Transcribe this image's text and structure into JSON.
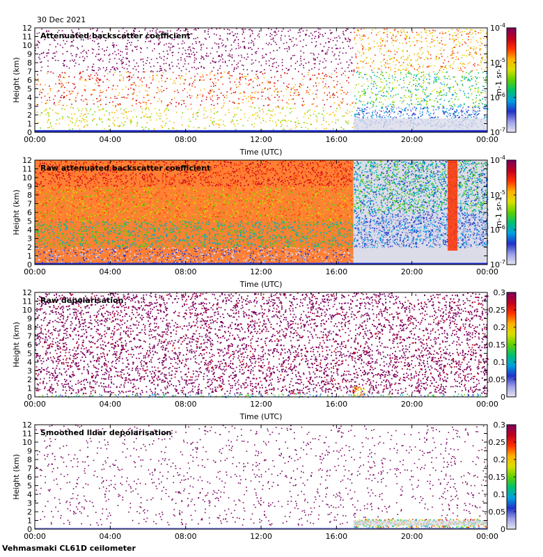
{
  "date": "30 Dec 2021",
  "footer": "Vehmasmaki CL61D ceilometer",
  "chart_data": [
    {
      "type": "heatmap",
      "title": "Attenuated backscatter coefficient",
      "xlabel": "Time (UTC)",
      "ylabel": "Height (km)",
      "xticks": [
        "00:00",
        "04:00",
        "08:00",
        "12:00",
        "16:00",
        "20:00",
        "00:00"
      ],
      "yticks": [
        "0",
        "1",
        "2",
        "3",
        "4",
        "5",
        "6",
        "7",
        "8",
        "9",
        "10",
        "11",
        "12"
      ],
      "ylim": [
        0,
        12
      ],
      "colorbar": {
        "scale": "log",
        "ticks": [
          "10-4",
          "10-5",
          "10-6",
          "10-7"
        ],
        "tick_base": "10",
        "tick_exponents": [
          "-4",
          "-5",
          "-6",
          "-7"
        ],
        "unit": "m-1 sr-1"
      }
    },
    {
      "type": "heatmap",
      "title": "Raw attenuated backscatter coefficient",
      "xlabel": "Time (UTC)",
      "ylabel": "Height (km)",
      "xticks": [
        "00:00",
        "04:00",
        "08:00",
        "12:00",
        "16:00",
        "20:00",
        "00:00"
      ],
      "yticks": [
        "0",
        "1",
        "2",
        "3",
        "4",
        "5",
        "6",
        "7",
        "8",
        "9",
        "10",
        "11",
        "12"
      ],
      "ylim": [
        0,
        12
      ],
      "colorbar": {
        "scale": "log",
        "ticks": [
          "10-4",
          "10-5",
          "10-6",
          "10-7"
        ],
        "tick_base": "10",
        "tick_exponents": [
          "-4",
          "-5",
          "-6",
          "-7"
        ],
        "unit": "m-1 sr-1"
      }
    },
    {
      "type": "heatmap",
      "title": "Raw depolarisation",
      "xlabel": "Time (UTC)",
      "ylabel": "Height (km)",
      "xticks": [
        "00:00",
        "04:00",
        "08:00",
        "12:00",
        "16:00",
        "20:00",
        "00:00"
      ],
      "yticks": [
        "0",
        "1",
        "2",
        "3",
        "4",
        "5",
        "6",
        "7",
        "8",
        "9",
        "10",
        "11",
        "12"
      ],
      "ylim": [
        0,
        12
      ],
      "colorbar": {
        "scale": "linear",
        "ticks": [
          "0.3",
          "0.25",
          "0.2",
          "0.15",
          "0.1",
          "0.05",
          "0"
        ],
        "unit": ""
      }
    },
    {
      "type": "heatmap",
      "title": "Smoothed lidar depolarisation",
      "xlabel": "Time (UTC)",
      "ylabel": "Height (km)",
      "xticks": [
        "00:00",
        "04:00",
        "08:00",
        "12:00",
        "16:00",
        "20:00",
        "00:00"
      ],
      "yticks": [
        "0",
        "1",
        "2",
        "3",
        "4",
        "5",
        "6",
        "7",
        "8",
        "9",
        "10",
        "11",
        "12"
      ],
      "ylim": [
        0,
        12
      ],
      "colorbar": {
        "scale": "linear",
        "ticks": [
          "0.3",
          "0.25",
          "0.2",
          "0.15",
          "0.1",
          "0.05",
          "0"
        ],
        "unit": ""
      }
    }
  ],
  "colors": {
    "colormap": [
      "#e6e6f0",
      "#9aa0e6",
      "#2230c8",
      "#00a0e0",
      "#00c070",
      "#60d000",
      "#d8e000",
      "#ffb000",
      "#ff3000",
      "#c00020",
      "#7a0060"
    ]
  }
}
